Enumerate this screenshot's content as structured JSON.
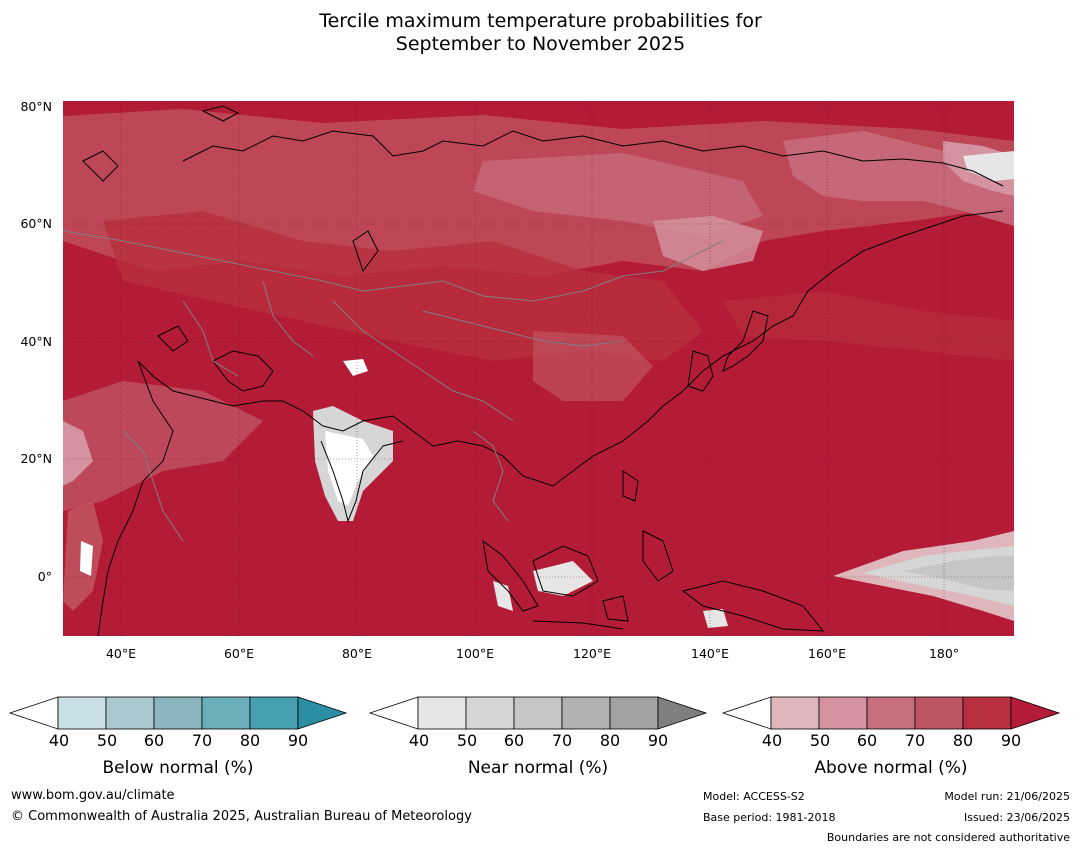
{
  "title": {
    "line1": "Tercile maximum temperature probabilities for",
    "line2": "September to November 2025"
  },
  "map": {
    "latitude_labels": [
      "80°N",
      "60°N",
      "40°N",
      "20°N",
      "0°"
    ],
    "longitude_labels": [
      "40°E",
      "60°E",
      "80°E",
      "100°E",
      "120°E",
      "140°E",
      "160°E",
      "180°"
    ]
  },
  "colorbars": [
    {
      "label": "Below normal (%)",
      "ticks": [
        "40",
        "50",
        "60",
        "70",
        "80",
        "90"
      ],
      "colors": [
        "#ffffff",
        "#c9e1e6",
        "#a9c9ce",
        "#8ab5bf",
        "#6aaebb",
        "#47a0af",
        "#2a8fa3"
      ]
    },
    {
      "label": "Near normal (%)",
      "ticks": [
        "40",
        "50",
        "60",
        "70",
        "80",
        "90"
      ],
      "colors": [
        "#ffffff",
        "#e6e6e6",
        "#d6d6d6",
        "#c6c6c6",
        "#b2b2b2",
        "#a1a1a1",
        "#7f7f7f"
      ]
    },
    {
      "label": "Above normal (%)",
      "ticks": [
        "40",
        "50",
        "60",
        "70",
        "80",
        "90"
      ],
      "colors": [
        "#ffffff",
        "#deb6bc",
        "#d4939e",
        "#c86f7e",
        "#bf5464",
        "#b8303f",
        "#b31b37"
      ]
    }
  ],
  "footer": {
    "website": "www.bom.gov.au/climate",
    "copyright": "© Commonwealth of Australia 2025, Australian Bureau of Meteorology",
    "model": "Model: ACCESS-S2",
    "base_period": "Base period: 1981-2018",
    "model_run": "Model run: 21/06/2025",
    "issued": "Issued: 23/06/2025",
    "disclaimer": "Boundaries are not considered authoritative"
  }
}
